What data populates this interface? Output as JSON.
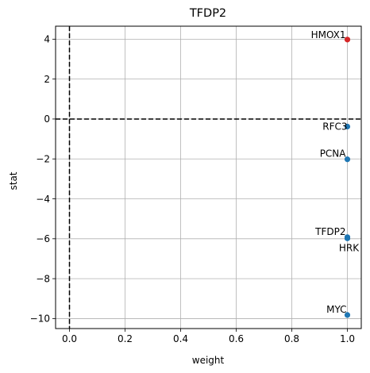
{
  "chart_data": {
    "type": "scatter",
    "title": "TFDP2",
    "xlabel": "weight",
    "ylabel": "stat",
    "xlim": [
      -0.05,
      1.05
    ],
    "ylim": [
      -10.5,
      4.65
    ],
    "xticks": [
      0.0,
      0.2,
      0.4,
      0.6,
      0.8,
      1.0
    ],
    "xtick_labels": [
      "0.0",
      "0.2",
      "0.4",
      "0.6",
      "0.8",
      "1.0"
    ],
    "yticks": [
      -10,
      -8,
      -6,
      -4,
      -2,
      0,
      2,
      4
    ],
    "ytick_labels": [
      "−10",
      "−8",
      "−6",
      "−4",
      "−2",
      "0",
      "2",
      "4"
    ],
    "grid": true,
    "reference_lines": [
      {
        "orientation": "vertical",
        "value": 0,
        "style": "dashed"
      },
      {
        "orientation": "horizontal",
        "value": 0,
        "style": "dashed"
      }
    ],
    "points": [
      {
        "label": "HMOX1",
        "x": 1.0,
        "y": 3.98,
        "color": "#d62728",
        "label_anchor": "end",
        "label_dx": -2,
        "label_dy": -2
      },
      {
        "label": "RFC3",
        "x": 1.0,
        "y": -0.38,
        "color": "#1f77b4",
        "label_anchor": "end",
        "label_dx": 0,
        "label_dy": 4
      },
      {
        "label": "PCNA",
        "x": 1.0,
        "y": -2.02,
        "color": "#1f77b4",
        "label_anchor": "end",
        "label_dx": -2,
        "label_dy": -3
      },
      {
        "label": "TFDP2",
        "x": 1.0,
        "y": -5.92,
        "color": "#1f77b4",
        "label_anchor": "end",
        "label_dx": -2,
        "label_dy": -3
      },
      {
        "label": "HRK",
        "x": 1.0,
        "y": -5.98,
        "color": "#1f77b4",
        "label_anchor": "middle",
        "label_dx": 2,
        "label_dy": 16
      },
      {
        "label": "MYC",
        "x": 1.0,
        "y": -9.82,
        "color": "#1f77b4",
        "label_anchor": "end",
        "label_dx": -1,
        "label_dy": -3
      }
    ]
  }
}
